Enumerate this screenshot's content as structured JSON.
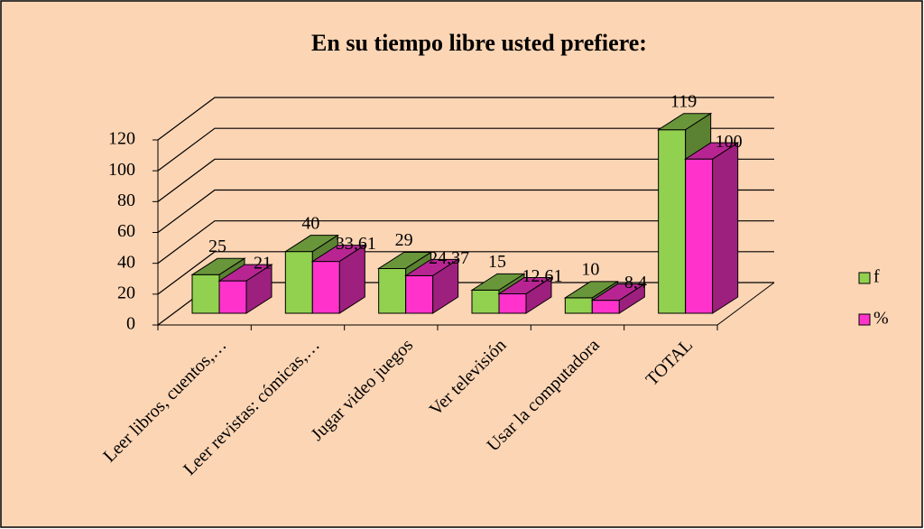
{
  "chart_data": {
    "type": "bar3d",
    "title": "En su tiempo libre usted prefiere:",
    "categories": [
      "Leer libros, cuentos,…",
      "Leer revistas: cómicas,…",
      "Jugar video juegos",
      "Ver televisión",
      "Usar la computadora",
      "TOTAL"
    ],
    "series": [
      {
        "name": "f",
        "color": "#92d050",
        "values": [
          25,
          40,
          29,
          15,
          10,
          119
        ]
      },
      {
        "name": "%",
        "color": "#ff33cc",
        "values": [
          21,
          33.61,
          24.37,
          12.61,
          8.4,
          100
        ],
        "value_labels": [
          "21",
          "33,61",
          "24,37",
          "12,61",
          "8,4",
          "100"
        ]
      }
    ],
    "ylim": [
      0,
      120
    ],
    "yticks": [
      0,
      20,
      40,
      60,
      80,
      100,
      120
    ],
    "grid": true,
    "legend": "right"
  }
}
